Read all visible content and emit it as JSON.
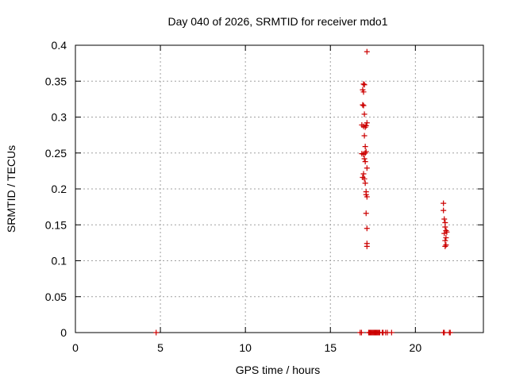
{
  "chart_data": {
    "type": "scatter",
    "title": "Day 040 of 2026, SRMTID for receiver mdo1",
    "xlabel": "GPS time / hours",
    "ylabel": "SRMTID / TECUs",
    "xlim": [
      0,
      24
    ],
    "ylim": [
      0,
      0.4
    ],
    "xticks": [
      0,
      5,
      10,
      15,
      20
    ],
    "yticks": [
      0,
      0.05,
      0.1,
      0.15,
      0.2,
      0.25,
      0.3,
      0.35,
      0.4
    ],
    "xtick_labels": [
      "0",
      "5",
      "10",
      "15",
      "20"
    ],
    "ytick_labels": [
      "0",
      "0.05",
      "0.1",
      "0.15",
      "0.2",
      "0.25",
      "0.3",
      "0.35",
      "0.4"
    ],
    "grid": true,
    "marker": "+",
    "color": "#cc0000",
    "points": [
      [
        4.75,
        0
      ],
      [
        16.75,
        0
      ],
      [
        16.83,
        0
      ],
      [
        17.25,
        0
      ],
      [
        17.3,
        0
      ],
      [
        17.35,
        0
      ],
      [
        17.4,
        0
      ],
      [
        17.45,
        0
      ],
      [
        17.5,
        0
      ],
      [
        17.55,
        0
      ],
      [
        17.6,
        0
      ],
      [
        17.65,
        0
      ],
      [
        17.7,
        0
      ],
      [
        17.75,
        0
      ],
      [
        17.8,
        0
      ],
      [
        17.85,
        0
      ],
      [
        17.9,
        0
      ],
      [
        18.05,
        0
      ],
      [
        18.1,
        0
      ],
      [
        18.25,
        0
      ],
      [
        18.35,
        0
      ],
      [
        18.6,
        0
      ],
      [
        21.65,
        0
      ],
      [
        21.7,
        0
      ],
      [
        22.0,
        0
      ],
      [
        22.05,
        0
      ],
      [
        17.15,
        0.391
      ],
      [
        16.95,
        0.346
      ],
      [
        17.0,
        0.345
      ],
      [
        16.9,
        0.338
      ],
      [
        16.95,
        0.335
      ],
      [
        16.9,
        0.317
      ],
      [
        16.95,
        0.316
      ],
      [
        17.0,
        0.304
      ],
      [
        17.15,
        0.292
      ],
      [
        16.85,
        0.289
      ],
      [
        16.95,
        0.287
      ],
      [
        17.05,
        0.286
      ],
      [
        17.1,
        0.288
      ],
      [
        17.0,
        0.274
      ],
      [
        17.05,
        0.259
      ],
      [
        17.1,
        0.252
      ],
      [
        17.05,
        0.25
      ],
      [
        16.95,
        0.248
      ],
      [
        16.85,
        0.249
      ],
      [
        17.0,
        0.242
      ],
      [
        17.05,
        0.238
      ],
      [
        17.15,
        0.229
      ],
      [
        16.95,
        0.221
      ],
      [
        16.9,
        0.216
      ],
      [
        17.0,
        0.214
      ],
      [
        17.05,
        0.208
      ],
      [
        17.1,
        0.196
      ],
      [
        17.1,
        0.192
      ],
      [
        17.15,
        0.189
      ],
      [
        17.1,
        0.166
      ],
      [
        17.15,
        0.145
      ],
      [
        17.15,
        0.124
      ],
      [
        17.15,
        0.12
      ],
      [
        21.65,
        0.18
      ],
      [
        21.65,
        0.17
      ],
      [
        21.7,
        0.158
      ],
      [
        21.75,
        0.153
      ],
      [
        21.75,
        0.147
      ],
      [
        21.8,
        0.142
      ],
      [
        21.85,
        0.14
      ],
      [
        21.7,
        0.138
      ],
      [
        21.8,
        0.132
      ],
      [
        21.75,
        0.128
      ],
      [
        21.8,
        0.122
      ],
      [
        21.75,
        0.12
      ]
    ]
  }
}
